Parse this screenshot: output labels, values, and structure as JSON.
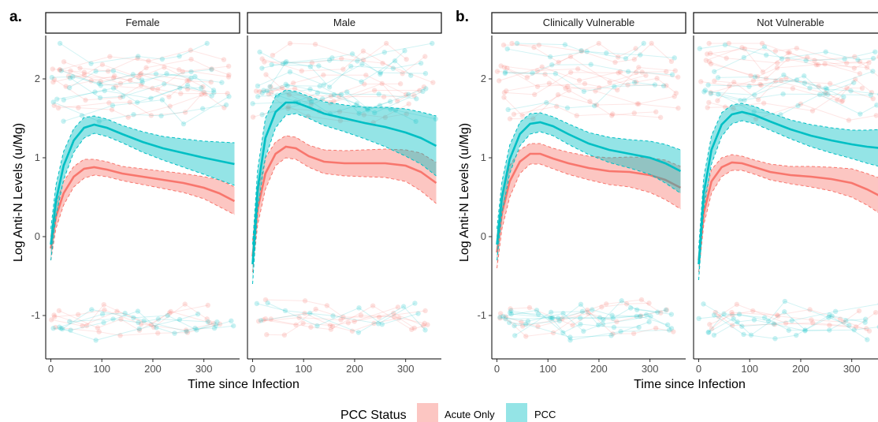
{
  "colors": {
    "acute": "#f8766d",
    "pcc": "#00bfc4"
  },
  "legend": {
    "title": "PCC Status",
    "items": [
      "Acute Only",
      "PCC"
    ]
  },
  "chart_data": [
    {
      "type": "line",
      "panel_label": "a.",
      "xlabel": "Time since Infection",
      "ylabel": "Log Anti-N Levels (u/Mg)",
      "xlim": [
        -10,
        370
      ],
      "ylim": [
        -1.55,
        2.55
      ],
      "x_ticks": [
        0,
        100,
        200,
        300
      ],
      "y_ticks": [
        -1,
        0,
        1,
        2
      ],
      "grid": false,
      "legend_position": "bottom",
      "facets": [
        {
          "strip": "Female",
          "series": [
            {
              "name": "Acute Only",
              "x": [
                0,
                10,
                25,
                45,
                65,
                85,
                110,
                140,
                180,
                220,
                260,
                300,
                330,
                360
              ],
              "y": [
                -0.15,
                0.25,
                0.55,
                0.76,
                0.86,
                0.88,
                0.85,
                0.8,
                0.76,
                0.72,
                0.68,
                0.62,
                0.55,
                0.45
              ],
              "lower": [
                -0.3,
                0.1,
                0.4,
                0.63,
                0.74,
                0.78,
                0.76,
                0.71,
                0.66,
                0.61,
                0.56,
                0.48,
                0.38,
                0.28
              ],
              "upper": [
                0.0,
                0.4,
                0.7,
                0.89,
                0.98,
                0.98,
                0.95,
                0.89,
                0.86,
                0.83,
                0.8,
                0.76,
                0.72,
                0.63
              ]
            },
            {
              "name": "PCC",
              "x": [
                0,
                10,
                25,
                45,
                65,
                85,
                110,
                140,
                180,
                220,
                260,
                300,
                330,
                360
              ],
              "y": [
                -0.1,
                0.45,
                0.9,
                1.22,
                1.38,
                1.42,
                1.38,
                1.3,
                1.2,
                1.12,
                1.06,
                1.0,
                0.96,
                0.92
              ],
              "lower": [
                -0.3,
                0.25,
                0.72,
                1.07,
                1.25,
                1.31,
                1.27,
                1.19,
                1.07,
                0.97,
                0.88,
                0.79,
                0.72,
                0.65
              ],
              "upper": [
                0.1,
                0.65,
                1.08,
                1.37,
                1.51,
                1.53,
                1.49,
                1.41,
                1.33,
                1.27,
                1.24,
                1.21,
                1.2,
                1.19
              ]
            }
          ]
        },
        {
          "strip": "Male",
          "series": [
            {
              "name": "Acute Only",
              "x": [
                0,
                10,
                25,
                45,
                65,
                85,
                110,
                140,
                180,
                220,
                260,
                300,
                330,
                360
              ],
              "y": [
                -0.25,
                0.35,
                0.8,
                1.05,
                1.14,
                1.12,
                1.02,
                0.95,
                0.93,
                0.93,
                0.93,
                0.9,
                0.82,
                0.68
              ],
              "lower": [
                -0.45,
                0.15,
                0.6,
                0.9,
                1.0,
                0.98,
                0.88,
                0.8,
                0.77,
                0.76,
                0.75,
                0.7,
                0.58,
                0.42
              ],
              "upper": [
                -0.05,
                0.55,
                1.0,
                1.2,
                1.28,
                1.26,
                1.16,
                1.1,
                1.09,
                1.1,
                1.11,
                1.1,
                1.06,
                0.94
              ]
            },
            {
              "name": "PCC",
              "x": [
                0,
                10,
                25,
                45,
                65,
                85,
                110,
                140,
                180,
                220,
                260,
                300,
                330,
                360
              ],
              "y": [
                -0.35,
                0.6,
                1.25,
                1.58,
                1.7,
                1.7,
                1.64,
                1.56,
                1.5,
                1.44,
                1.39,
                1.32,
                1.25,
                1.15
              ],
              "lower": [
                -0.6,
                0.35,
                1.0,
                1.38,
                1.54,
                1.56,
                1.5,
                1.41,
                1.33,
                1.24,
                1.14,
                1.02,
                0.92,
                0.77
              ],
              "upper": [
                -0.1,
                0.85,
                1.5,
                1.78,
                1.86,
                1.84,
                1.78,
                1.71,
                1.67,
                1.64,
                1.64,
                1.62,
                1.58,
                1.53
              ]
            }
          ]
        }
      ]
    },
    {
      "type": "line",
      "panel_label": "b.",
      "xlabel": "Time since Infection",
      "ylabel": "Log Anti-N Levels (u/Mg)",
      "xlim": [
        -10,
        370
      ],
      "ylim": [
        -1.55,
        2.55
      ],
      "x_ticks": [
        0,
        100,
        200,
        300
      ],
      "y_ticks": [
        -1,
        0,
        1,
        2
      ],
      "grid": false,
      "legend_position": "bottom",
      "facets": [
        {
          "strip": "Clinically Vulnerable",
          "series": [
            {
              "name": "Acute Only",
              "x": [
                0,
                10,
                25,
                45,
                65,
                85,
                110,
                140,
                180,
                220,
                260,
                300,
                330,
                360
              ],
              "y": [
                -0.2,
                0.3,
                0.7,
                0.95,
                1.05,
                1.05,
                0.99,
                0.93,
                0.87,
                0.83,
                0.82,
                0.78,
                0.72,
                0.62
              ],
              "lower": [
                -0.4,
                0.1,
                0.5,
                0.8,
                0.92,
                0.92,
                0.86,
                0.79,
                0.72,
                0.66,
                0.63,
                0.56,
                0.47,
                0.35
              ],
              "upper": [
                0.0,
                0.5,
                0.9,
                1.1,
                1.18,
                1.18,
                1.12,
                1.07,
                1.02,
                1.0,
                1.01,
                1.0,
                0.97,
                0.89
              ]
            },
            {
              "name": "PCC",
              "x": [
                0,
                10,
                25,
                45,
                65,
                85,
                110,
                140,
                180,
                220,
                260,
                300,
                330,
                360
              ],
              "y": [
                -0.1,
                0.5,
                0.98,
                1.3,
                1.43,
                1.45,
                1.4,
                1.3,
                1.18,
                1.1,
                1.05,
                1.0,
                0.93,
                0.83
              ],
              "lower": [
                -0.3,
                0.3,
                0.8,
                1.15,
                1.3,
                1.33,
                1.28,
                1.17,
                1.04,
                0.94,
                0.87,
                0.79,
                0.68,
                0.55
              ],
              "upper": [
                0.1,
                0.7,
                1.16,
                1.45,
                1.56,
                1.57,
                1.52,
                1.43,
                1.32,
                1.26,
                1.23,
                1.21,
                1.17,
                1.1
              ]
            }
          ]
        },
        {
          "strip": "Not Vulnerable",
          "series": [
            {
              "name": "Acute Only",
              "x": [
                0,
                10,
                25,
                45,
                65,
                85,
                110,
                140,
                180,
                220,
                260,
                300,
                330,
                360
              ],
              "y": [
                -0.3,
                0.3,
                0.7,
                0.88,
                0.94,
                0.93,
                0.88,
                0.82,
                0.78,
                0.76,
                0.73,
                0.68,
                0.6,
                0.5
              ],
              "lower": [
                -0.45,
                0.15,
                0.55,
                0.76,
                0.84,
                0.84,
                0.79,
                0.72,
                0.67,
                0.63,
                0.58,
                0.5,
                0.4,
                0.27
              ],
              "upper": [
                -0.15,
                0.45,
                0.85,
                1.0,
                1.04,
                1.02,
                0.97,
                0.92,
                0.89,
                0.89,
                0.88,
                0.86,
                0.8,
                0.73
              ]
            },
            {
              "name": "PCC",
              "x": [
                0,
                10,
                25,
                45,
                65,
                85,
                110,
                140,
                180,
                220,
                260,
                300,
                330,
                360
              ],
              "y": [
                -0.35,
                0.55,
                1.1,
                1.42,
                1.55,
                1.58,
                1.54,
                1.46,
                1.36,
                1.28,
                1.22,
                1.17,
                1.14,
                1.12
              ],
              "lower": [
                -0.55,
                0.35,
                0.92,
                1.27,
                1.43,
                1.47,
                1.43,
                1.35,
                1.24,
                1.14,
                1.06,
                0.99,
                0.93,
                0.88
              ],
              "upper": [
                -0.15,
                0.75,
                1.28,
                1.57,
                1.67,
                1.69,
                1.65,
                1.57,
                1.48,
                1.42,
                1.38,
                1.35,
                1.35,
                1.36
              ]
            }
          ]
        }
      ]
    }
  ]
}
